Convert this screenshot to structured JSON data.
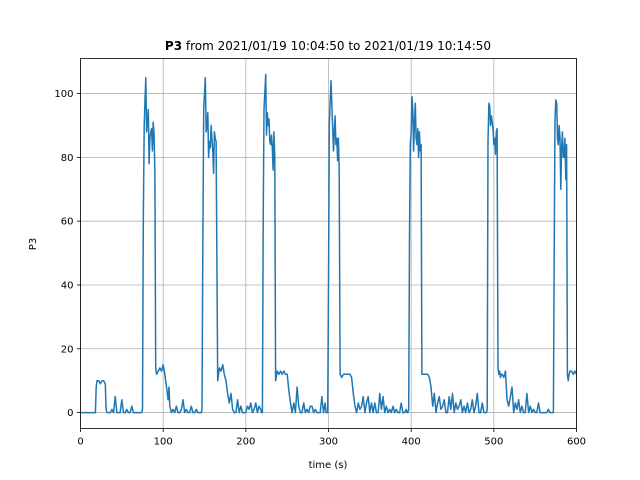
{
  "chart_data": {
    "type": "line",
    "title": {
      "bold": "P3",
      "rest": " from 2021/01/19 10:04:50 to 2021/01/19 10:14:50"
    },
    "xlabel": "time (s)",
    "ylabel": "P3",
    "xlim": [
      0,
      600
    ],
    "ylim": [
      -5,
      111
    ],
    "xticks": [
      0,
      100,
      200,
      300,
      400,
      500,
      600
    ],
    "yticks": [
      0,
      20,
      40,
      60,
      80,
      100
    ],
    "xtick_labels": [
      "0",
      "100",
      "200",
      "300",
      "400",
      "500",
      "600"
    ],
    "ytick_labels": [
      "0",
      "20",
      "40",
      "60",
      "80",
      "100"
    ],
    "grid": true,
    "series": [
      {
        "color": "#1f77b4",
        "x": [
          0,
          18,
          19,
          20,
          22,
          24,
          26,
          28,
          30,
          31,
          32,
          34,
          36,
          38,
          40,
          42,
          44,
          46,
          48,
          50,
          52,
          54,
          56,
          58,
          60,
          62,
          64,
          66,
          68,
          70,
          72,
          74,
          75,
          76,
          77,
          78,
          79,
          80,
          81,
          82,
          83,
          84,
          85,
          86,
          87,
          88,
          89,
          90,
          91,
          92,
          94,
          96,
          98,
          100,
          102,
          104,
          106,
          107,
          108,
          110,
          112,
          114,
          116,
          118,
          120,
          122,
          124,
          126,
          128,
          130,
          132,
          134,
          136,
          138,
          140,
          142,
          144,
          146,
          147,
          148,
          149,
          150,
          151,
          152,
          153,
          154,
          155,
          156,
          157,
          158,
          159,
          160,
          161,
          162,
          163,
          164,
          166,
          168,
          170,
          172,
          174,
          176,
          178,
          180,
          182,
          184,
          186,
          188,
          190,
          192,
          194,
          196,
          198,
          200,
          202,
          204,
          206,
          208,
          210,
          212,
          214,
          216,
          218,
          219,
          220,
          221,
          222,
          223,
          224,
          225,
          226,
          227,
          228,
          229,
          230,
          231,
          232,
          233,
          234,
          235,
          236,
          238,
          240,
          242,
          244,
          246,
          248,
          250,
          252,
          254,
          256,
          258,
          260,
          262,
          264,
          266,
          268,
          270,
          272,
          274,
          276,
          278,
          280,
          282,
          284,
          286,
          288,
          290,
          292,
          294,
          296,
          297,
          298,
          299,
          300,
          301,
          302,
          303,
          304,
          305,
          306,
          307,
          308,
          309,
          310,
          311,
          312,
          313,
          314,
          316,
          318,
          320,
          322,
          324,
          326,
          328,
          330,
          332,
          334,
          336,
          338,
          340,
          342,
          344,
          346,
          348,
          350,
          352,
          354,
          356,
          358,
          360,
          362,
          364,
          366,
          368,
          370,
          372,
          374,
          376,
          378,
          380,
          382,
          384,
          386,
          388,
          390,
          392,
          394,
          395,
          396,
          397,
          398,
          399,
          400,
          401,
          402,
          403,
          404,
          405,
          406,
          407,
          408,
          409,
          410,
          411,
          412,
          413,
          414,
          416,
          418,
          420,
          422,
          424,
          426,
          428,
          430,
          432,
          434,
          436,
          438,
          440,
          442,
          444,
          446,
          448,
          450,
          452,
          454,
          456,
          458,
          460,
          462,
          464,
          466,
          468,
          470,
          472,
          474,
          476,
          478,
          480,
          482,
          484,
          486,
          488,
          490,
          491,
          492,
          493,
          494,
          495,
          496,
          497,
          498,
          499,
          500,
          501,
          502,
          503,
          504,
          505,
          506,
          507,
          508,
          509,
          510,
          512,
          514,
          516,
          518,
          520,
          522,
          524,
          526,
          528,
          530,
          532,
          534,
          536,
          538,
          540,
          542,
          544,
          546,
          548,
          550,
          552,
          554,
          556,
          558,
          560,
          562,
          564,
          566,
          568,
          570,
          572,
          573,
          574,
          575,
          576,
          577,
          578,
          579,
          580,
          581,
          582,
          583,
          584,
          585,
          586,
          587,
          588,
          589,
          590,
          591,
          592,
          594,
          596,
          598,
          600
        ],
        "y": [
          0,
          0,
          8,
          10,
          10,
          9,
          10,
          10,
          9,
          1,
          0,
          0,
          0,
          1,
          0,
          5,
          0,
          0,
          0,
          4,
          0,
          0,
          1,
          0,
          0,
          2,
          0,
          0,
          0,
          0,
          0,
          0,
          1,
          60,
          90,
          98,
          105,
          88,
          92,
          95,
          78,
          86,
          88,
          89,
          82,
          91,
          87,
          75,
          14,
          12,
          13,
          14,
          13,
          15,
          12,
          8,
          4,
          8,
          2,
          0,
          1,
          0,
          2,
          0,
          0,
          1,
          4,
          0,
          1,
          0,
          0,
          2,
          0,
          0,
          1,
          0,
          0,
          0,
          1,
          50,
          95,
          100,
          105,
          88,
          90,
          94,
          80,
          85,
          83,
          90,
          86,
          82,
          75,
          88,
          86,
          85,
          10,
          14,
          13,
          15,
          12,
          10,
          6,
          3,
          6,
          1,
          0,
          0,
          4,
          0,
          2,
          0,
          0,
          0,
          2,
          1,
          3,
          0,
          1,
          3,
          0,
          2,
          1,
          0,
          0,
          60,
          95,
          100,
          106,
          87,
          94,
          90,
          92,
          85,
          84,
          87,
          83,
          76,
          88,
          80,
          10,
          13,
          12,
          13,
          12,
          13,
          12,
          12,
          7,
          3,
          0,
          3,
          0,
          8,
          2,
          0,
          0,
          3,
          0,
          1,
          0,
          2,
          2,
          0,
          1,
          0,
          0,
          0,
          5,
          0,
          3,
          0,
          0,
          0,
          40,
          90,
          98,
          104,
          97,
          90,
          82,
          88,
          93,
          84,
          86,
          79,
          86,
          76,
          12,
          11,
          12,
          12,
          12,
          12,
          12,
          11,
          6,
          2,
          0,
          3,
          1,
          2,
          5,
          0,
          3,
          5,
          0,
          3,
          0,
          3,
          0,
          0,
          6,
          1,
          5,
          0,
          2,
          0,
          1,
          0,
          2,
          0,
          1,
          0,
          0,
          3,
          0,
          0,
          1,
          0,
          0,
          1,
          55,
          84,
          88,
          99,
          95,
          82,
          91,
          97,
          86,
          84,
          89,
          80,
          88,
          82,
          84,
          12,
          12,
          12,
          12,
          12,
          11,
          8,
          2,
          6,
          0,
          3,
          5,
          1,
          2,
          4,
          0,
          0,
          5,
          1,
          6,
          0,
          3,
          1,
          2,
          4,
          0,
          2,
          0,
          3,
          0,
          1,
          4,
          0,
          2,
          6,
          0,
          0,
          3,
          0,
          0,
          0,
          1,
          85,
          97,
          96,
          90,
          93,
          91,
          89,
          84,
          86,
          81,
          88,
          89,
          14,
          12,
          13,
          11,
          12,
          12,
          11,
          13,
          4,
          2,
          5,
          8,
          0,
          3,
          1,
          4,
          0,
          2,
          0,
          0,
          6,
          0,
          2,
          0,
          1,
          0,
          0,
          3,
          0,
          0,
          0,
          0,
          0,
          1,
          0,
          0,
          0,
          50,
          92,
          98,
          97,
          86,
          84,
          90,
          86,
          70,
          83,
          88,
          80,
          80,
          86,
          73,
          84,
          12,
          10,
          12,
          13,
          13,
          12,
          13,
          12
        ]
      }
    ]
  }
}
